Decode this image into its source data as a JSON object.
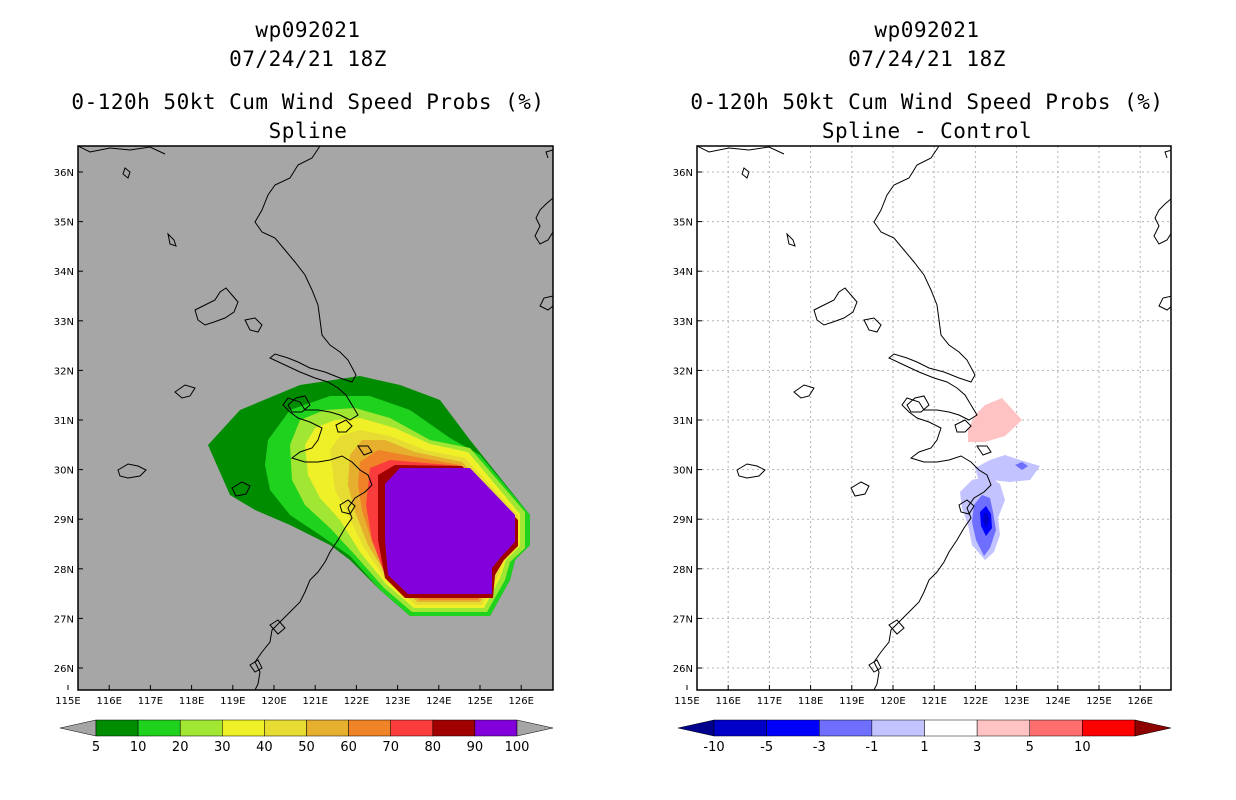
{
  "left_panel": {
    "title_line1": "wp092021",
    "title_line2": "07/24/21 18Z",
    "title_line3": "0-120h 50kt Cum Wind Speed Probs (%)",
    "title_line4": "Spline",
    "colorbar": {
      "labels": [
        "5",
        "10",
        "20",
        "30",
        "40",
        "50",
        "60",
        "70",
        "80",
        "90",
        "100"
      ],
      "colors": [
        "#008c00",
        "#1ed21e",
        "#a0e632",
        "#f0f028",
        "#e6dc32",
        "#e6af2d",
        "#f08228",
        "#fa3c3c",
        "#a00000",
        "#8200dc"
      ],
      "under_color": "#a6a6a6",
      "over_color": "#a6a6a6"
    },
    "background_color": "#a6a6a6"
  },
  "right_panel": {
    "title_line1": "wp092021",
    "title_line2": "07/24/21 18Z",
    "title_line3": "0-120h 50kt Cum Wind Speed Probs (%)",
    "title_line4": "Spline - Control",
    "colorbar": {
      "labels": [
        "-10",
        "-5",
        "-3",
        "-1",
        "1",
        "3",
        "5",
        "10"
      ],
      "colors": [
        "#0000c8",
        "#0000ff",
        "#6e6eff",
        "#c3c3ff",
        "#ffffff",
        "#ffc3c3",
        "#ff6e6e",
        "#ff0000"
      ],
      "under_color": "#00008c",
      "over_color": "#8c0000"
    }
  },
  "axes": {
    "lon_labels": [
      "115E",
      "116E",
      "117E",
      "118E",
      "119E",
      "120E",
      "121E",
      "122E",
      "123E",
      "124E",
      "125E",
      "126E"
    ],
    "lat_labels": [
      "36N",
      "35N",
      "34N",
      "33N",
      "32N",
      "31N",
      "30N",
      "29N",
      "28N",
      "27N",
      "26N"
    ]
  }
}
